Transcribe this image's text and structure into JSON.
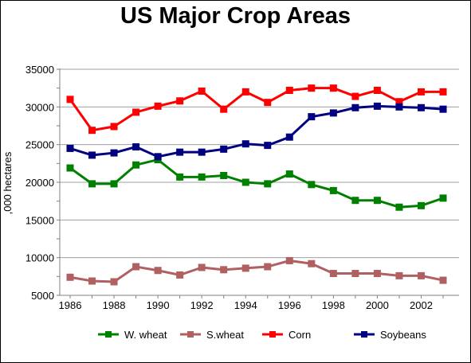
{
  "chart_data": {
    "type": "line",
    "title": "US Major Crop Areas",
    "xlabel": "",
    "ylabel": ",000 hectares",
    "xlim": [
      1986,
      2003
    ],
    "ylim": [
      5000,
      35000
    ],
    "x": [
      1986,
      1987,
      1988,
      1989,
      1990,
      1991,
      1992,
      1993,
      1994,
      1995,
      1996,
      1997,
      1998,
      1999,
      2000,
      2001,
      2002,
      2003
    ],
    "x_ticks": [
      1986,
      1988,
      1990,
      1992,
      1994,
      1996,
      1998,
      2000,
      2002
    ],
    "y_ticks": [
      5000,
      10000,
      15000,
      20000,
      25000,
      30000,
      35000
    ],
    "grid": true,
    "legend_position": "bottom",
    "series": [
      {
        "name": "W. wheat",
        "color": "#008000",
        "values": [
          21900,
          19800,
          19800,
          22300,
          23000,
          20700,
          20700,
          20900,
          20000,
          19800,
          21100,
          19700,
          18900,
          17600,
          17600,
          16700,
          16900,
          17900
        ]
      },
      {
        "name": "S.wheat",
        "color": "#b06060",
        "values": [
          7400,
          6900,
          6800,
          8800,
          8300,
          7700,
          8700,
          8400,
          8600,
          8800,
          9600,
          9200,
          7900,
          7900,
          7900,
          7600,
          7600,
          7000
        ]
      },
      {
        "name": "Corn",
        "color": "#ff0000",
        "values": [
          31000,
          26900,
          27400,
          29300,
          30100,
          30800,
          32100,
          29700,
          32000,
          30600,
          32200,
          32500,
          32500,
          31400,
          32200,
          30700,
          32000,
          32000
        ]
      },
      {
        "name": "Soybeans",
        "color": "#000080",
        "values": [
          24500,
          23600,
          23900,
          24700,
          23400,
          24000,
          24000,
          24400,
          25100,
          24900,
          26000,
          28700,
          29200,
          29900,
          30100,
          30000,
          29900,
          29700
        ]
      }
    ]
  }
}
